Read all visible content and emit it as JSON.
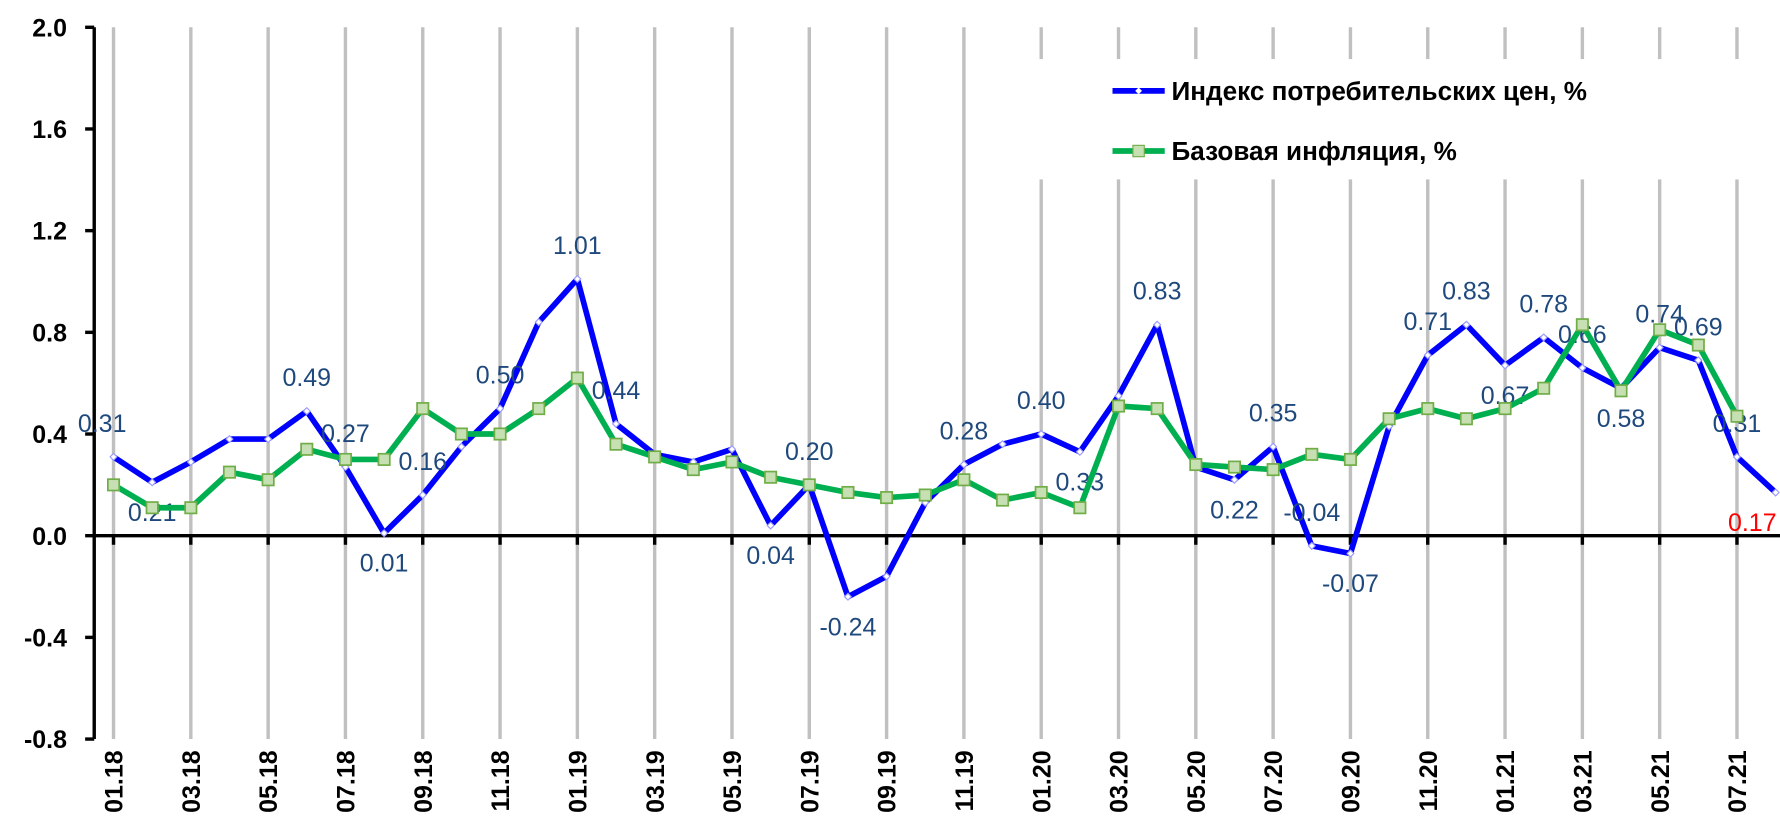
{
  "chart_data": {
    "type": "line",
    "categories": [
      "01.18",
      null,
      "03.18",
      null,
      "05.18",
      null,
      "07.18",
      null,
      "09.18",
      null,
      "11.18",
      null,
      "01.19",
      null,
      "03.19",
      null,
      "05.19",
      null,
      "07.19",
      null,
      "09.19",
      null,
      "11.19",
      null,
      "01.20",
      null,
      "03.20",
      null,
      "05.20",
      null,
      "07.20",
      null,
      "09.20",
      null,
      "11.20",
      null,
      "01.21",
      null,
      "03.21",
      null,
      "05.21",
      null,
      "07.21",
      null
    ],
    "series": [
      {
        "name": "Индекс потребительских цен, %",
        "color": "#0000ff",
        "values": [
          0.31,
          0.21,
          0.29,
          0.38,
          0.38,
          0.49,
          0.27,
          0.01,
          0.16,
          0.35,
          0.5,
          0.84,
          1.01,
          0.44,
          0.32,
          0.29,
          0.34,
          0.04,
          0.2,
          -0.24,
          -0.16,
          0.13,
          0.28,
          0.36,
          0.4,
          0.33,
          0.55,
          0.83,
          0.27,
          0.22,
          0.35,
          -0.04,
          -0.07,
          0.43,
          0.71,
          0.83,
          0.67,
          0.78,
          0.66,
          0.58,
          0.74,
          0.69,
          0.31,
          0.17
        ],
        "value_labels": [
          "0.31",
          "0.21",
          null,
          null,
          null,
          "0.49",
          "0.27",
          "0.01",
          "0.16",
          null,
          "0.50",
          null,
          "1.01",
          "0.44",
          null,
          null,
          null,
          "0.04",
          "0.20",
          "-0.24",
          null,
          null,
          "0.28",
          null,
          "0.40",
          "0.33",
          null,
          "0.83",
          null,
          "0.22",
          "0.35",
          "-0.04",
          "-0.07",
          null,
          "0.71",
          "0.83",
          "0.67",
          "0.78",
          "0.66",
          "0.58",
          "0.74",
          "0.69",
          "0.31",
          "0.17"
        ]
      },
      {
        "name": "Базовая инфляция, %",
        "color": "#00b050",
        "values": [
          0.2,
          0.11,
          0.11,
          0.25,
          0.22,
          0.34,
          0.3,
          0.3,
          0.5,
          0.4,
          0.4,
          0.5,
          0.62,
          0.36,
          0.31,
          0.26,
          0.29,
          0.23,
          0.2,
          0.17,
          0.15,
          0.16,
          0.22,
          0.14,
          0.17,
          0.11,
          0.51,
          0.5,
          0.28,
          0.27,
          0.26,
          0.32,
          0.3,
          0.46,
          0.5,
          0.46,
          0.5,
          0.58,
          0.83,
          0.57,
          0.81,
          0.75,
          0.47,
          null
        ]
      }
    ],
    "data_label_color": "#1f497d",
    "latest_label_color": "#ff0000",
    "ylim": [
      -0.8,
      2.0
    ],
    "yticks": [
      {
        "value": -0.8,
        "label": "-0.8"
      },
      {
        "value": -0.4,
        "label": "-0.4"
      },
      {
        "value": 0,
        "label": "0.0"
      },
      {
        "value": 0.4,
        "label": "0.4"
      },
      {
        "value": 0.8,
        "label": "0.8"
      },
      {
        "value": 1.2,
        "label": "1.2"
      },
      {
        "value": 1.6,
        "label": "1.6"
      },
      {
        "value": 2.0,
        "label": "2.0"
      }
    ],
    "grid": true,
    "legend": "top-right"
  }
}
